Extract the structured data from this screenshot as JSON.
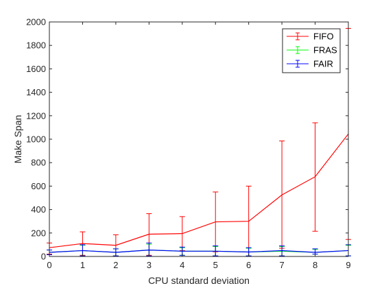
{
  "chart_data": {
    "type": "line",
    "xlabel": "CPU standard deviation",
    "ylabel": "Make Span",
    "xlim": [
      0,
      9
    ],
    "ylim": [
      0,
      2000
    ],
    "x_ticks": [
      0,
      1,
      2,
      3,
      4,
      5,
      6,
      7,
      8,
      9
    ],
    "y_ticks": [
      0,
      200,
      400,
      600,
      800,
      1000,
      1200,
      1400,
      1600,
      1800,
      2000
    ],
    "error_bars": true,
    "grid": false,
    "legend_position": "top-right",
    "x": [
      0,
      1,
      2,
      3,
      4,
      5,
      6,
      7,
      8,
      9
    ],
    "series": [
      {
        "name": "FIFO",
        "color": "#ff0000",
        "values": [
          75,
          110,
          95,
          190,
          195,
          295,
          300,
          525,
          680,
          1045
        ],
        "err_low": [
          20,
          10,
          5,
          10,
          50,
          40,
          0,
          70,
          215,
          145
        ],
        "err_high": [
          115,
          210,
          185,
          365,
          340,
          550,
          600,
          985,
          1140,
          1945
        ]
      },
      {
        "name": "FRAS",
        "color": "#00ff00",
        "values": [
          35,
          50,
          35,
          55,
          45,
          45,
          38,
          45,
          35,
          50
        ],
        "err_low": [
          15,
          5,
          5,
          5,
          10,
          5,
          5,
          5,
          20,
          5
        ],
        "err_high": [
          55,
          95,
          65,
          105,
          75,
          85,
          70,
          85,
          60,
          95
        ]
      },
      {
        "name": "FAIR",
        "color": "#0000ff",
        "values": [
          35,
          50,
          35,
          55,
          45,
          45,
          38,
          50,
          35,
          50
        ],
        "err_low": [
          15,
          5,
          5,
          5,
          10,
          5,
          5,
          5,
          20,
          5
        ],
        "err_high": [
          55,
          100,
          65,
          115,
          80,
          90,
          75,
          90,
          65,
          100
        ]
      }
    ]
  }
}
